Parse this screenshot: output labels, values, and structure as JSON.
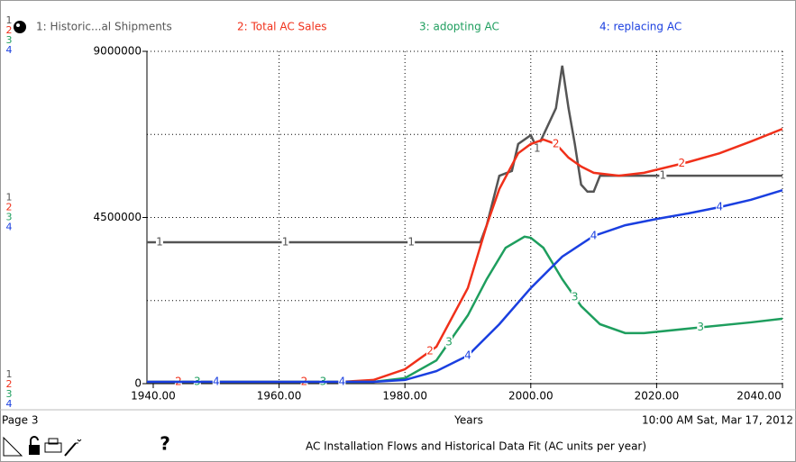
{
  "chart_data": {
    "type": "line",
    "title": "AC Installation Flows and Historical Data Fit (AC units per year)",
    "xlabel": "Years",
    "page": "Page 3",
    "timestamp": "10:00 AM  Sat, Mar 17, 2012",
    "help": "?",
    "xlim": [
      1939,
      2040
    ],
    "ylim": [
      0,
      9000000
    ],
    "xticks": [
      {
        "value": 1940,
        "label": "1940.00"
      },
      {
        "value": 1960,
        "label": "1960.00"
      },
      {
        "value": 1980,
        "label": "1980.00"
      },
      {
        "value": 2000,
        "label": "2000.00"
      },
      {
        "value": 2020,
        "label": "2020.00"
      },
      {
        "value": 2040,
        "label": "2040.00"
      }
    ],
    "yticks": [
      0,
      4500000,
      9000000
    ],
    "xgrid": [
      1960,
      1980,
      2000,
      2020,
      2040
    ],
    "ygrid": [
      2250000,
      4500000,
      6750000,
      9000000
    ],
    "series": [
      {
        "name": "1: Historic...al Shipments",
        "key": "1",
        "color": "#555555",
        "x": [
          1939,
          1992,
          1993,
          1995,
          1997,
          1998,
          2000,
          2001,
          2002,
          2004,
          2005,
          2006,
          2007,
          2008,
          2009,
          2010,
          2011,
          2040
        ],
        "values": [
          3830000,
          3830000,
          4290000,
          5630000,
          5760000,
          6490000,
          6730000,
          6370000,
          6730000,
          7460000,
          8610000,
          7460000,
          6490000,
          5390000,
          5200000,
          5200000,
          5630000,
          5630000
        ]
      },
      {
        "name": "2: Total AC Sales",
        "key": "2",
        "color": "#f0301a",
        "x": [
          1939,
          1970,
          1975,
          1980,
          1985,
          1990,
          1993,
          1995,
          1998,
          2000,
          2002,
          2004,
          2006,
          2008,
          2010,
          2014,
          2018,
          2025,
          2030,
          2035,
          2040
        ],
        "values": [
          50000,
          50000,
          100000,
          390000,
          1000000,
          2590000,
          4290000,
          5270000,
          6240000,
          6490000,
          6610000,
          6490000,
          6120000,
          5880000,
          5710000,
          5630000,
          5710000,
          6000000,
          6240000,
          6560000,
          6900000
        ]
      },
      {
        "name": "3: adopting AC",
        "key": "3",
        "color": "#1e9e5e",
        "x": [
          1939,
          1970,
          1975,
          1980,
          1985,
          1990,
          1993,
          1996,
          1999,
          2000,
          2002,
          2005,
          2008,
          2011,
          2015,
          2018,
          2025,
          2035,
          2040
        ],
        "values": [
          50000,
          50000,
          50000,
          150000,
          630000,
          1850000,
          2830000,
          3680000,
          3980000,
          3950000,
          3680000,
          2830000,
          2100000,
          1610000,
          1370000,
          1370000,
          1490000,
          1660000,
          1760000
        ]
      },
      {
        "name": "4: replacing AC",
        "key": "4",
        "color": "#1a3fe0",
        "x": [
          1939,
          1975,
          1980,
          1985,
          1990,
          1995,
          2000,
          2005,
          2010,
          2015,
          2020,
          2025,
          2030,
          2035,
          2040
        ],
        "values": [
          50000,
          50000,
          100000,
          340000,
          760000,
          1610000,
          2590000,
          3440000,
          4000000,
          4290000,
          4460000,
          4610000,
          4780000,
          4980000,
          5240000
        ]
      }
    ]
  }
}
